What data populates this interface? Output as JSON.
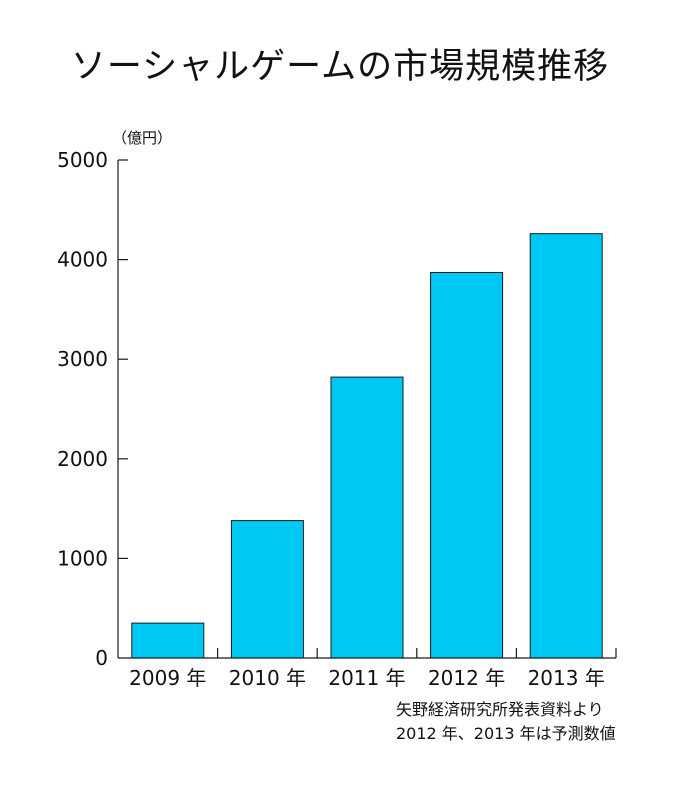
{
  "chart_data": {
    "type": "bar",
    "title": "ソーシャルゲームの市場規模推移",
    "unit_label": "（億円）",
    "categories": [
      "2009 年",
      "2010 年",
      "2011 年",
      "2012 年",
      "2013 年"
    ],
    "values": [
      350,
      1380,
      2820,
      3870,
      4260
    ],
    "ylim": [
      0,
      5000
    ],
    "yticks": [
      0,
      1000,
      2000,
      3000,
      4000,
      5000
    ],
    "bar_color": "#00c8f5",
    "grid": false,
    "source_line1": "矢野経済研究所発表資料より",
    "source_line2": "2012 年、2013 年は予測数値"
  }
}
